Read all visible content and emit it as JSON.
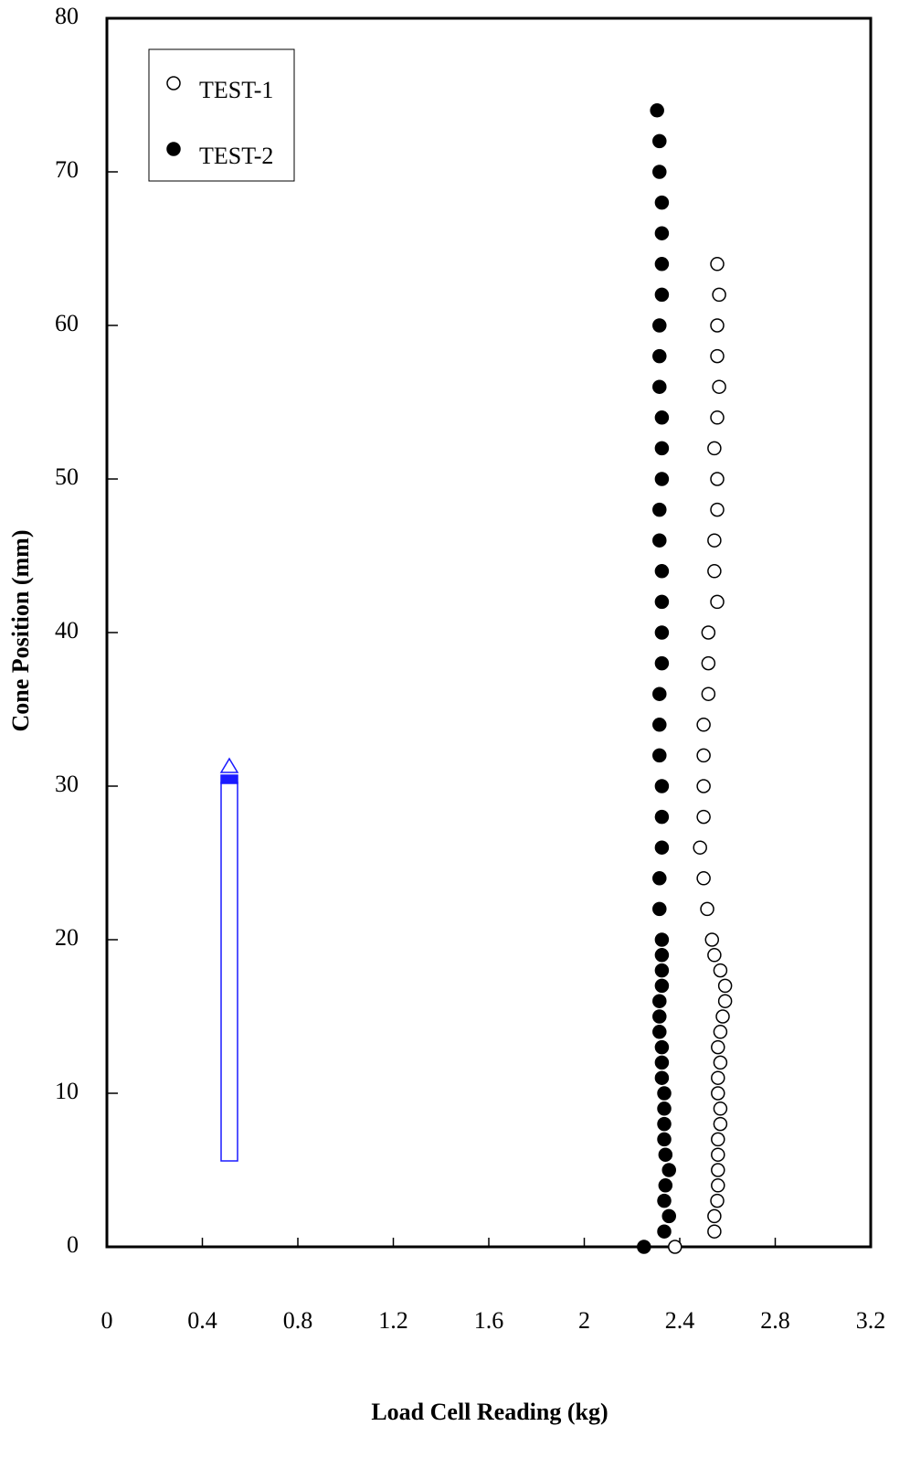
{
  "chart_data": {
    "type": "scatter",
    "xlabel": "Load Cell Reading (kg)",
    "ylabel": "Cone Position (mm)",
    "xlim": [
      0,
      3.2
    ],
    "ylim": [
      0,
      80
    ],
    "xticks": [
      0,
      0.4,
      0.8,
      1.2,
      1.6,
      2,
      2.4,
      2.8,
      3.2
    ],
    "yticks": [
      0,
      10,
      20,
      30,
      40,
      50,
      60,
      70,
      80
    ],
    "legend": "upper left",
    "grid": false,
    "series": [
      {
        "name": "TEST-1",
        "color": "#000000",
        "marker": "open",
        "x": [
          2.38,
          2.545,
          2.545,
          2.557,
          2.56,
          2.56,
          2.56,
          2.56,
          2.57,
          2.57,
          2.56,
          2.56,
          2.57,
          2.56,
          2.57,
          2.58,
          2.59,
          2.59,
          2.57,
          2.545,
          2.535,
          2.515,
          2.5,
          2.485,
          2.5,
          2.5,
          2.5,
          2.5,
          2.52,
          2.52,
          2.52,
          2.557,
          2.545,
          2.545,
          2.557,
          2.557,
          2.545,
          2.557,
          2.565,
          2.557,
          2.557,
          2.565,
          2.557
        ],
        "values": [
          0,
          1,
          2,
          3,
          4,
          5,
          6,
          7,
          8,
          9,
          10,
          11,
          12,
          13,
          14,
          15,
          16,
          17,
          18,
          19,
          20,
          22,
          24,
          26,
          28,
          30,
          32,
          34,
          36,
          38,
          40,
          42,
          44,
          46,
          48,
          50,
          52,
          54,
          56,
          58,
          60,
          62,
          64
        ]
      },
      {
        "name": "TEST-2",
        "color": "#000000",
        "marker": "filled",
        "x": [
          2.25,
          2.335,
          2.355,
          2.335,
          2.34,
          2.355,
          2.34,
          2.335,
          2.335,
          2.335,
          2.335,
          2.325,
          2.325,
          2.325,
          2.315,
          2.315,
          2.315,
          2.325,
          2.325,
          2.325,
          2.325,
          2.315,
          2.315,
          2.325,
          2.325,
          2.325,
          2.315,
          2.315,
          2.315,
          2.325,
          2.325,
          2.325,
          2.325,
          2.315,
          2.315,
          2.325,
          2.325,
          2.325,
          2.315,
          2.315,
          2.315,
          2.325,
          2.325,
          2.325,
          2.325,
          2.315,
          2.315,
          2.305
        ],
        "values": [
          0,
          1,
          2,
          3,
          4,
          5,
          6,
          7,
          8,
          9,
          10,
          11,
          12,
          13,
          14,
          15,
          16,
          17,
          18,
          19,
          20,
          22,
          24,
          26,
          28,
          30,
          32,
          34,
          36,
          38,
          40,
          42,
          44,
          46,
          48,
          50,
          52,
          54,
          56,
          58,
          60,
          62,
          64,
          66,
          68,
          70,
          72,
          74
        ]
      }
    ]
  }
}
